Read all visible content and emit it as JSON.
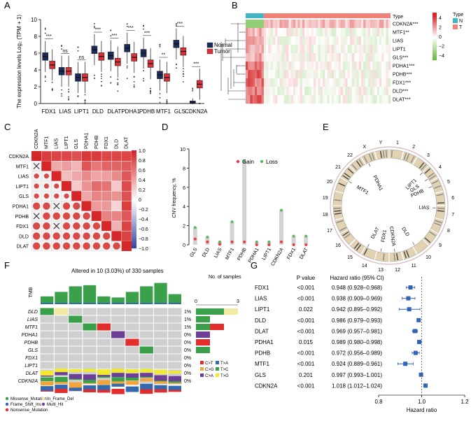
{
  "panels": [
    "A",
    "B",
    "C",
    "D",
    "E",
    "F",
    "G"
  ],
  "chart_data": [
    {
      "panel": "A",
      "type": "box",
      "ylabel": "The expression levels Log₂ (TPM + 1)",
      "categories": [
        "FDX1",
        "LIAS",
        "LIPT1",
        "DLD",
        "DLAT",
        "PDHA1",
        "PDHB",
        "MTF1",
        "GLS",
        "CDKN2A"
      ],
      "series": [
        {
          "name": "Normal",
          "color": "#1c2c5a",
          "medians": [
            5.6,
            3.85,
            3.1,
            6.4,
            5.7,
            6.6,
            6.0,
            3.4,
            7.1,
            0.15
          ]
        },
        {
          "name": "Tumor",
          "color": "#d9303a",
          "medians": [
            4.6,
            3.85,
            3.1,
            5.6,
            4.95,
            5.5,
            4.75,
            3.1,
            6.2,
            2.3
          ]
        }
      ],
      "significance": [
        "***",
        "ns",
        "ns",
        "***",
        "***",
        "***",
        "***",
        "**",
        "***",
        "***"
      ],
      "ylim": [
        0,
        10
      ],
      "yticks": [
        0,
        2,
        4,
        6,
        8,
        10
      ]
    },
    {
      "panel": "B",
      "type": "heatmap",
      "rows": [
        "CDKN2A***",
        "MTF1**",
        "LIAS",
        "LIPT1",
        "GLS***",
        "PDHA1***",
        "PDHB***",
        "FDX1***",
        "DLD***",
        "DLAT***"
      ],
      "type_annotation_label": "Type",
      "legend_title": "Type",
      "legend_groups": [
        "N",
        "T"
      ],
      "colorbar_ticks": [
        4,
        2,
        0,
        -2,
        -4
      ]
    },
    {
      "panel": "C",
      "type": "heatmap",
      "genes": [
        "CDKN2A",
        "MTF1",
        "LIAS",
        "LIPT1",
        "GLS",
        "PDHA1",
        "PDHB",
        "FDX1",
        "DLD",
        "DLAT"
      ],
      "colorbar_ticks": [
        "1.0",
        "0.8",
        "0.6",
        "0.4",
        "0.2",
        "0",
        "−0.2",
        "−0.4",
        "−0.6",
        "−0.8",
        "−1.0"
      ],
      "cross_cells": [
        [
          "MTF1",
          "CDKN2A"
        ],
        [
          "PDHA1",
          "LIAS"
        ],
        [
          "PDHB",
          "CDKN2A"
        ],
        [
          "FDX1",
          "LIAS"
        ]
      ]
    },
    {
      "panel": "D",
      "type": "bar",
      "ylabel": "CNV frequency, %",
      "categories": [
        "GLS",
        "DLD",
        "LIAS",
        "MTF1",
        "PDHB",
        "PDHA1",
        "LIPT1",
        "CDKN2A",
        "FDX1",
        "DLAT"
      ],
      "series": [
        {
          "name": "Gain",
          "color": "#ec3a46",
          "values": [
            0.6,
            0.3,
            0.05,
            0.3,
            0.3,
            0.0,
            0.0,
            0.3,
            0.0,
            0.0
          ]
        },
        {
          "name": "Loss",
          "color": "#5cb85c",
          "values": [
            1.8,
            0.8,
            0.3,
            2.4,
            8.7,
            0.3,
            0.3,
            3.6,
            0.9,
            0.9
          ]
        }
      ],
      "ylim": [
        0,
        10
      ],
      "yticks": [
        0,
        2,
        4,
        6,
        8,
        10
      ]
    },
    {
      "panel": "E",
      "type": "other",
      "chromosome_labels": [
        "1",
        "2",
        "3",
        "4",
        "5",
        "6",
        "7",
        "8",
        "9",
        "10",
        "11",
        "12",
        "13",
        "14",
        "15",
        "16",
        "17",
        "18",
        "19",
        "20",
        "21",
        "22",
        "X",
        "Y"
      ],
      "gene_labels": [
        "PDHA1",
        "LIPT1",
        "GLS",
        "PDHB",
        "LIAS",
        "DLD",
        "CDKN2A",
        "FDX1",
        "DLAT",
        "MTF1"
      ]
    },
    {
      "panel": "F",
      "type": "other",
      "title": "Altered in 10 (3.03%) of 330 samples",
      "ylabel": "TMB",
      "rows": [
        "DLD",
        "LIAS",
        "MTF1",
        "PDHA1",
        "PDHB",
        "GLS",
        "FDX1",
        "LIPT1",
        "DLAT",
        "CDKN2A"
      ],
      "percentages": [
        "1%",
        "1%",
        "1%",
        "0%",
        "0%",
        "0%",
        "0%",
        "0%",
        "0%",
        "0%"
      ],
      "samples_axis_label": "No. of samples",
      "samples_axis_ticks": [
        "0",
        "3"
      ],
      "variant_legend": [
        "Missense_Mutation",
        "In_Frame_Del",
        "Frame_Shift_Ins",
        "Multi_Hit",
        "Nonsense_Mutation"
      ],
      "substitution_legend": [
        "C>T",
        "T>A",
        "C>G",
        "T>C",
        "C>A",
        "T>G"
      ]
    },
    {
      "panel": "G",
      "type": "scatter",
      "columns": [
        "P value",
        "Hazard ratio (95% CI)"
      ],
      "xlabel": "Hazard ratio",
      "xticks": [
        "0.8",
        "1.0",
        "1.2"
      ],
      "xlim": [
        0.8,
        1.2
      ],
      "rows": [
        {
          "gene": "FDX1",
          "p": "<0.001",
          "label": "0.948 (0.928–0.968)",
          "hr": 0.948,
          "lo": 0.928,
          "hi": 0.968
        },
        {
          "gene": "LIAS",
          "p": "<0.001",
          "label": "0.938 (0.909–0.969)",
          "hr": 0.938,
          "lo": 0.909,
          "hi": 0.969
        },
        {
          "gene": "LIPT1",
          "p": "0.022",
          "label": "0.942 (0.895–0.992)",
          "hr": 0.942,
          "lo": 0.895,
          "hi": 0.992
        },
        {
          "gene": "DLD",
          "p": "<0.001",
          "label": "0.986 (0.979–0.993)",
          "hr": 0.986,
          "lo": 0.979,
          "hi": 0.993
        },
        {
          "gene": "DLAT",
          "p": "<0.001",
          "label": "0.969 (0.957–0.981)",
          "hr": 0.969,
          "lo": 0.957,
          "hi": 0.981
        },
        {
          "gene": "PDHA1",
          "p": "0.015",
          "label": "0.989 (0.980–0.998)",
          "hr": 0.989,
          "lo": 0.98,
          "hi": 0.998
        },
        {
          "gene": "PDHB",
          "p": "<0.001",
          "label": "0.972 (0.956–0.989)",
          "hr": 0.972,
          "lo": 0.956,
          "hi": 0.989
        },
        {
          "gene": "MTF1",
          "p": "<0.001",
          "label": "0.924 (0.889–0.961)",
          "hr": 0.924,
          "lo": 0.889,
          "hi": 0.961
        },
        {
          "gene": "GLS",
          "p": "0.201",
          "label": "0.997 (0.993–1.001)",
          "hr": 0.997,
          "lo": 0.993,
          "hi": 1.001
        },
        {
          "gene": "CDKN2A",
          "p": "<0.001",
          "label": "1.018 (1.012–1.024)",
          "hr": 1.018,
          "lo": 1.012,
          "hi": 1.024
        }
      ]
    }
  ]
}
